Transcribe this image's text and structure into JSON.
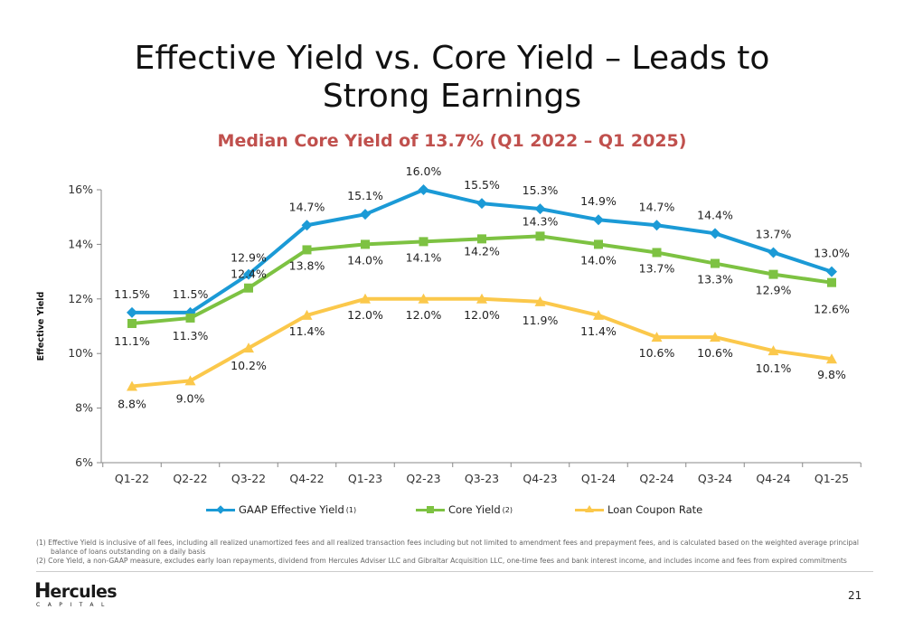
{
  "slide": {
    "title": "Effective Yield vs. Core Yield – Leads to Strong Earnings",
    "subtitle": "Median Core Yield of 13.7% (Q1 2022 – Q1 2025)",
    "page_number": "21"
  },
  "legend": {
    "items": [
      {
        "label": "GAAP Effective Yield",
        "sup": "(1)"
      },
      {
        "label": "Core Yield",
        "sup": "(2)"
      },
      {
        "label": "Loan Coupon Rate",
        "sup": ""
      }
    ]
  },
  "footnotes": [
    "(1) Effective Yield is inclusive of all fees, including all realized unamortized fees and all realized transaction fees including but not limited to amendment fees and prepayment fees, and is calculated based on the weighted average principal balance of loans outstanding on a daily basis",
    "(2) Core Yield, a non-GAAP measure, excludes early loan repayments, dividend from Hercules Adviser LLC and Gibraltar Acquisition LLC, one-time fees and bank interest income, and includes income and fees from expired commitments"
  ],
  "logo": {
    "wordmark": "ercules",
    "initial": "H",
    "tagline": "CAPITAL"
  },
  "chart_data": {
    "type": "line",
    "ylabel": "Effective Yield",
    "xlabel": "",
    "ylim": [
      6,
      16
    ],
    "yticks": [
      6,
      8,
      10,
      12,
      14,
      16
    ],
    "ytick_suffix": "%",
    "grid": false,
    "legend_position": "bottom",
    "categories": [
      "Q1-22",
      "Q2-22",
      "Q3-22",
      "Q4-22",
      "Q1-23",
      "Q2-23",
      "Q3-23",
      "Q4-23",
      "Q1-24",
      "Q2-24",
      "Q3-24",
      "Q4-24",
      "Q1-25"
    ],
    "series": [
      {
        "name": "GAAP Effective Yield",
        "color": "#1b9ad6",
        "marker": "diamond",
        "values": [
          11.5,
          11.5,
          12.9,
          14.7,
          15.1,
          16.0,
          15.5,
          15.3,
          14.9,
          14.7,
          14.4,
          13.7,
          13.0
        ],
        "labels": [
          "11.5%",
          "11.5%",
          "12.9%",
          "14.7%",
          "15.1%",
          "16.0%",
          "15.5%",
          "15.3%",
          "14.9%",
          "14.7%",
          "14.4%",
          "13.7%",
          "13.0%"
        ]
      },
      {
        "name": "Core Yield",
        "color": "#7dc242",
        "marker": "square",
        "values": [
          11.1,
          11.3,
          12.4,
          13.8,
          14.0,
          14.1,
          14.2,
          14.3,
          14.0,
          13.7,
          13.3,
          12.9,
          12.6
        ],
        "labels": [
          "11.1%",
          "11.3%",
          "12.4%",
          "13.8%",
          "14.0%",
          "14.1%",
          "14.2%",
          "14.3%",
          "14.0%",
          "13.7%",
          "13.3%",
          "12.9%",
          "12.6%"
        ]
      },
      {
        "name": "Loan Coupon Rate",
        "color": "#fbc84b",
        "marker": "triangle",
        "values": [
          8.8,
          9.0,
          10.2,
          11.4,
          12.0,
          12.0,
          12.0,
          11.9,
          11.4,
          10.6,
          10.6,
          10.1,
          9.8
        ],
        "labels": [
          "8.8%",
          "9.0%",
          "10.2%",
          "11.4%",
          "12.0%",
          "12.0%",
          "12.0%",
          "11.9%",
          "11.4%",
          "10.6%",
          "10.6%",
          "10.1%",
          "9.8%"
        ]
      }
    ]
  }
}
